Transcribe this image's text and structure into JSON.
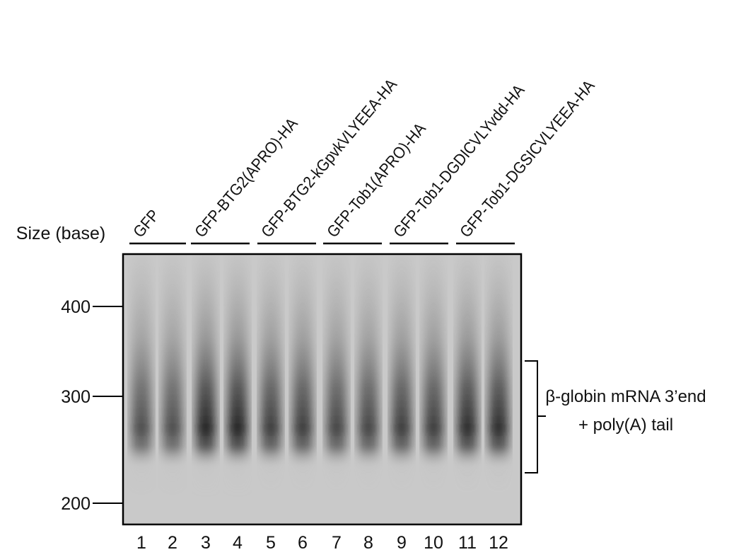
{
  "size_label": "Size (base)",
  "markers": [
    "400",
    "300",
    "200"
  ],
  "groups": [
    "GFP",
    "GFP-BTG2(APRO)-HA",
    "GFP-BTG2-kGpvkVLYEEA-HA",
    "GFP-Tob1(APRO)-HA",
    "GFP-Tob1-DGDICVLYvdd-HA",
    "GFP-Tob1-DGSICVLYEEA-HA"
  ],
  "lanes": [
    "1",
    "2",
    "3",
    "4",
    "5",
    "6",
    "7",
    "8",
    "9",
    "10",
    "11",
    "12"
  ],
  "annotation": {
    "line1": "β-globin mRNA 3’end",
    "line2": "+ poly(A) tail"
  }
}
